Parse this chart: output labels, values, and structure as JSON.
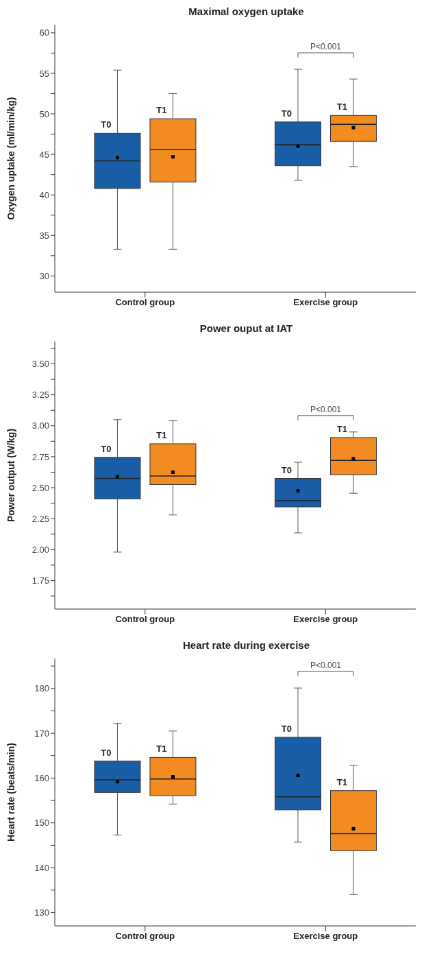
{
  "chart_data": [
    {
      "type": "box",
      "title": "Maximal oxygen uptake",
      "ylabel": "Oxygen uptake (ml/min/kg)",
      "categories": [
        "Control group",
        "Exercise group"
      ],
      "ylim": [
        28,
        61
      ],
      "yticks": [
        30,
        {
          "value": 32.5,
          "label": null
        },
        35,
        {
          "value": 37.5,
          "label": null
        },
        40,
        {
          "value": 42.5,
          "label": null
        },
        45,
        {
          "value": 47.5,
          "label": null
        },
        50,
        {
          "value": 52.5,
          "label": null
        },
        55,
        {
          "value": 57.5,
          "label": null
        },
        60
      ],
      "marker": "square",
      "annotations": [
        "P<0.001"
      ],
      "series": [
        {
          "name": "T0",
          "color": "#1a5ea8",
          "boxes": [
            {
              "low": 33.3,
              "q1": 40.8,
              "median": 44.2,
              "q3": 47.6,
              "high": 55.4,
              "mean": 44.6
            },
            {
              "low": 41.8,
              "q1": 43.6,
              "median": 46.2,
              "q3": 49.0,
              "high": 55.5,
              "mean": 46.0
            }
          ]
        },
        {
          "name": "T1",
          "color": "#f28c22",
          "boxes": [
            {
              "low": 33.3,
              "q1": 41.6,
              "median": 45.6,
              "q3": 49.4,
              "high": 52.5,
              "mean": 44.7
            },
            {
              "low": 43.5,
              "q1": 46.6,
              "median": 48.7,
              "q3": 49.8,
              "high": 54.3,
              "mean": 48.3
            }
          ]
        }
      ]
    },
    {
      "type": "box",
      "title": "Power ouput at IAT",
      "ylabel": "Power output (W/kg)",
      "categories": [
        "Control group",
        "Exercise group"
      ],
      "ylim": [
        1.52,
        3.68
      ],
      "yticks": [
        {
          "value": 1.625,
          "label": null
        },
        {
          "value": 1.75,
          "label": "1.75"
        },
        {
          "value": 1.875,
          "label": null
        },
        {
          "value": 2,
          "label": "2.00"
        },
        {
          "value": 2.125,
          "label": null
        },
        {
          "value": 2.25,
          "label": "2.25"
        },
        {
          "value": 2.375,
          "label": null
        },
        {
          "value": 2.5,
          "label": "2.50"
        },
        {
          "value": 2.625,
          "label": null
        },
        {
          "value": 2.75,
          "label": "2.75"
        },
        {
          "value": 2.875,
          "label": null
        },
        {
          "value": 3,
          "label": "3.00"
        },
        {
          "value": 3.125,
          "label": null
        },
        {
          "value": 3.25,
          "label": "3.25"
        },
        {
          "value": 3.375,
          "label": null
        },
        {
          "value": 3.5,
          "label": "3.50"
        },
        {
          "value": 3.625,
          "label": null
        }
      ],
      "marker": "square",
      "annotations": [
        "P<0.001"
      ],
      "series": [
        {
          "name": "T0",
          "color": "#1a5ea8",
          "boxes": [
            {
              "low": 1.98,
              "q1": 2.41,
              "median": 2.575,
              "q3": 2.745,
              "high": 3.05,
              "mean": 2.59
            },
            {
              "low": 2.135,
              "q1": 2.345,
              "median": 2.395,
              "q3": 2.575,
              "high": 2.705,
              "mean": 2.475
            }
          ]
        },
        {
          "name": "T1",
          "color": "#f28c22",
          "boxes": [
            {
              "low": 2.28,
              "q1": 2.525,
              "median": 2.595,
              "q3": 2.855,
              "high": 3.04,
              "mean": 2.625
            },
            {
              "low": 2.455,
              "q1": 2.605,
              "median": 2.72,
              "q3": 2.905,
              "high": 2.95,
              "mean": 2.735
            }
          ]
        }
      ]
    },
    {
      "type": "box",
      "title": "Heart rate during exercise",
      "ylabel": "Heart rate (beats/min)",
      "categories": [
        "Control group",
        "Exercise group"
      ],
      "ylim": [
        127,
        186.7
      ],
      "yticks": [
        130,
        {
          "value": 135,
          "label": null
        },
        140,
        {
          "value": 145,
          "label": null
        },
        150,
        {
          "value": 155,
          "label": null
        },
        160,
        {
          "value": 165,
          "label": null
        },
        170,
        {
          "value": 175,
          "label": null
        },
        180,
        {
          "value": 185,
          "label": null
        }
      ],
      "marker": "square",
      "annotations": [
        "P<0.001"
      ],
      "series": [
        {
          "name": "T0",
          "color": "#1a5ea8",
          "boxes": [
            {
              "low": 147.3,
              "q1": 156.8,
              "median": 159.6,
              "q3": 163.8,
              "high": 172.2,
              "mean": 159.2
            },
            {
              "low": 145.7,
              "q1": 152.9,
              "median": 155.8,
              "q3": 169.1,
              "high": 180.1,
              "mean": 160.6
            }
          ]
        },
        {
          "name": "T1",
          "color": "#f28c22",
          "boxes": [
            {
              "low": 154.2,
              "q1": 156.1,
              "median": 159.8,
              "q3": 164.6,
              "high": 170.5,
              "mean": 160.3
            },
            {
              "low": 134,
              "q1": 143.8,
              "median": 147.6,
              "q3": 157.2,
              "high": 162.8,
              "mean": 148.7
            }
          ]
        }
      ]
    }
  ]
}
